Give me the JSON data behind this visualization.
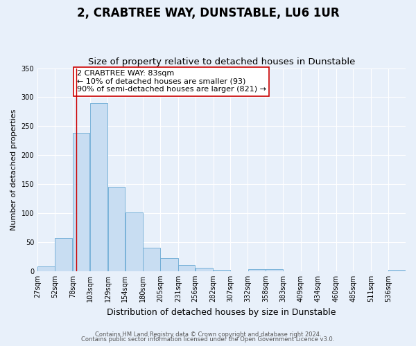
{
  "title": "2, CRABTREE WAY, DUNSTABLE, LU6 1UR",
  "subtitle": "Size of property relative to detached houses in Dunstable",
  "xlabel": "Distribution of detached houses by size in Dunstable",
  "ylabel": "Number of detached properties",
  "bar_color": "#c8ddf2",
  "bar_edge_color": "#6aaad4",
  "background_color": "#e8f0fa",
  "grid_color": "#ffffff",
  "bin_labels": [
    "27sqm",
    "52sqm",
    "78sqm",
    "103sqm",
    "129sqm",
    "154sqm",
    "180sqm",
    "205sqm",
    "231sqm",
    "256sqm",
    "282sqm",
    "307sqm",
    "332sqm",
    "358sqm",
    "383sqm",
    "409sqm",
    "434sqm",
    "460sqm",
    "485sqm",
    "511sqm",
    "536sqm"
  ],
  "bar_heights": [
    8,
    57,
    238,
    290,
    145,
    101,
    41,
    22,
    11,
    6,
    2,
    0,
    4,
    3,
    0,
    0,
    0,
    0,
    0,
    0,
    2
  ],
  "bin_edges": [
    27,
    52,
    78,
    103,
    129,
    154,
    180,
    205,
    231,
    256,
    282,
    307,
    332,
    358,
    383,
    409,
    434,
    460,
    485,
    511,
    536,
    561
  ],
  "vline_x": 83,
  "vline_color": "#cc0000",
  "ylim": [
    0,
    350
  ],
  "yticks": [
    0,
    50,
    100,
    150,
    200,
    250,
    300,
    350
  ],
  "annotation_text": "2 CRABTREE WAY: 83sqm\n← 10% of detached houses are smaller (93)\n90% of semi-detached houses are larger (821) →",
  "annotation_box_color": "#ffffff",
  "annotation_box_edge": "#cc0000",
  "footer_line1": "Contains HM Land Registry data © Crown copyright and database right 2024.",
  "footer_line2": "Contains public sector information licensed under the Open Government Licence v3.0.",
  "title_fontsize": 12,
  "subtitle_fontsize": 9.5,
  "xlabel_fontsize": 9,
  "ylabel_fontsize": 8,
  "tick_fontsize": 7,
  "annotation_fontsize": 8,
  "footer_fontsize": 6
}
